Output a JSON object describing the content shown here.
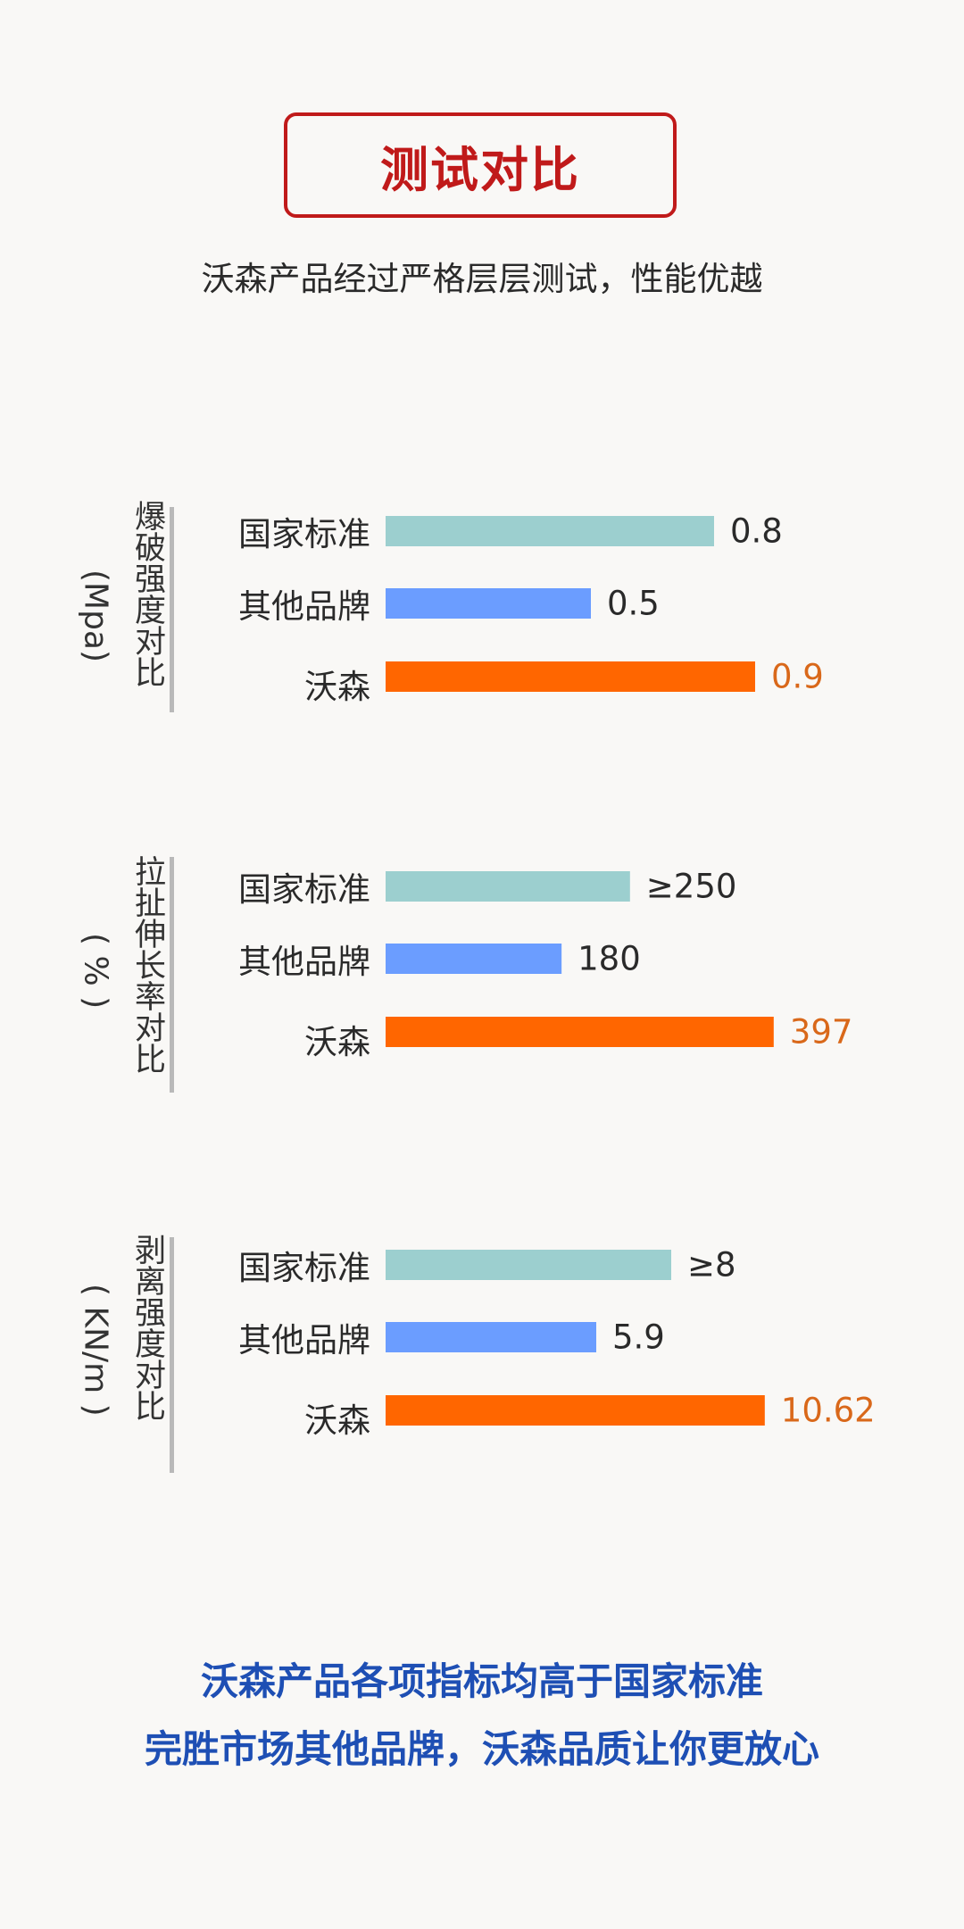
{
  "header": {
    "title": "测试对比",
    "subtitle": "沃森产品经过严格层层测试，性能优越"
  },
  "colors": {
    "国家标准": "#9ccfcf",
    "其他品牌": "#6b9dff",
    "沃森": "#ff6600",
    "highlight_value": "#d9681a",
    "title": "#c01a1a",
    "footer": "#1e4fb4"
  },
  "chart_data": [
    {
      "type": "bar",
      "orientation": "horizontal",
      "title": "爆破强度对比",
      "unit": "(Mpa)",
      "categories": [
        "国家标准",
        "其他品牌",
        "沃森"
      ],
      "values": [
        0.8,
        0.5,
        0.9
      ],
      "value_labels": [
        "0.8",
        "0.5",
        "0.9"
      ],
      "xlim": [
        0,
        1.0
      ],
      "highlight_index": 2
    },
    {
      "type": "bar",
      "orientation": "horizontal",
      "title": "拉扯伸长率对比",
      "unit": "( % )",
      "categories": [
        "国家标准",
        "其他品牌",
        "沃森"
      ],
      "values": [
        250,
        180,
        397
      ],
      "value_labels": [
        "≥250",
        "180",
        "397"
      ],
      "xlim": [
        0,
        420
      ],
      "highlight_index": 2
    },
    {
      "type": "bar",
      "orientation": "horizontal",
      "title": "剥离强度对比",
      "unit": "( KN/m )",
      "categories": [
        "国家标准",
        "其他品牌",
        "沃森"
      ],
      "values": [
        8,
        5.9,
        10.62
      ],
      "value_labels": [
        "≥8",
        "5.9",
        "10.62"
      ],
      "xlim": [
        0,
        11.5
      ],
      "highlight_index": 2
    }
  ],
  "footer": {
    "line1": "沃森产品各项指标均高于国家标准",
    "line2": "完胜市场其他品牌，沃森品质让你更放心"
  }
}
